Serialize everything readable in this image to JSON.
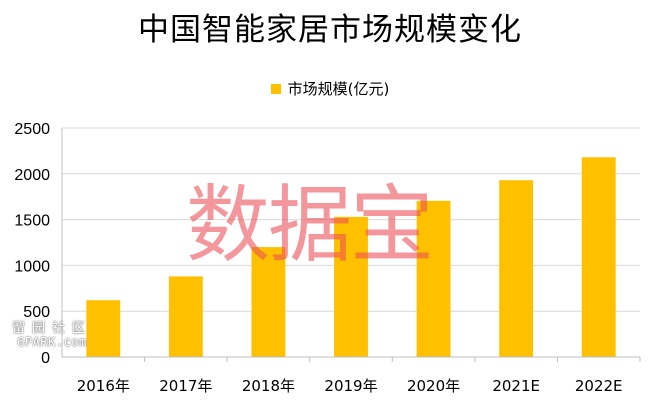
{
  "chart_data": {
    "type": "bar",
    "title": "中国智能家居市场规模变化",
    "categories": [
      "2016年",
      "2017年",
      "2018年",
      "2019年",
      "2020年",
      "2021E",
      "2022E"
    ],
    "series": [
      {
        "name": "市场规模(亿元)",
        "values": [
          620,
          880,
          1200,
          1530,
          1705,
          1930,
          2180
        ]
      }
    ],
    "ylim": [
      0,
      2500
    ],
    "yticks": [
      0,
      500,
      1000,
      1500,
      2000,
      2500
    ],
    "grid": true,
    "legend": "top-center",
    "xlabel": "",
    "ylabel": ""
  },
  "colors": {
    "bar": "#FFC000",
    "grid": "#D9D9D9",
    "axis": "#BFBFBF"
  },
  "watermark": {
    "text": "数据宝"
  },
  "site_mark": {
    "cn": "留园社区",
    "en": "6PARK.com"
  }
}
